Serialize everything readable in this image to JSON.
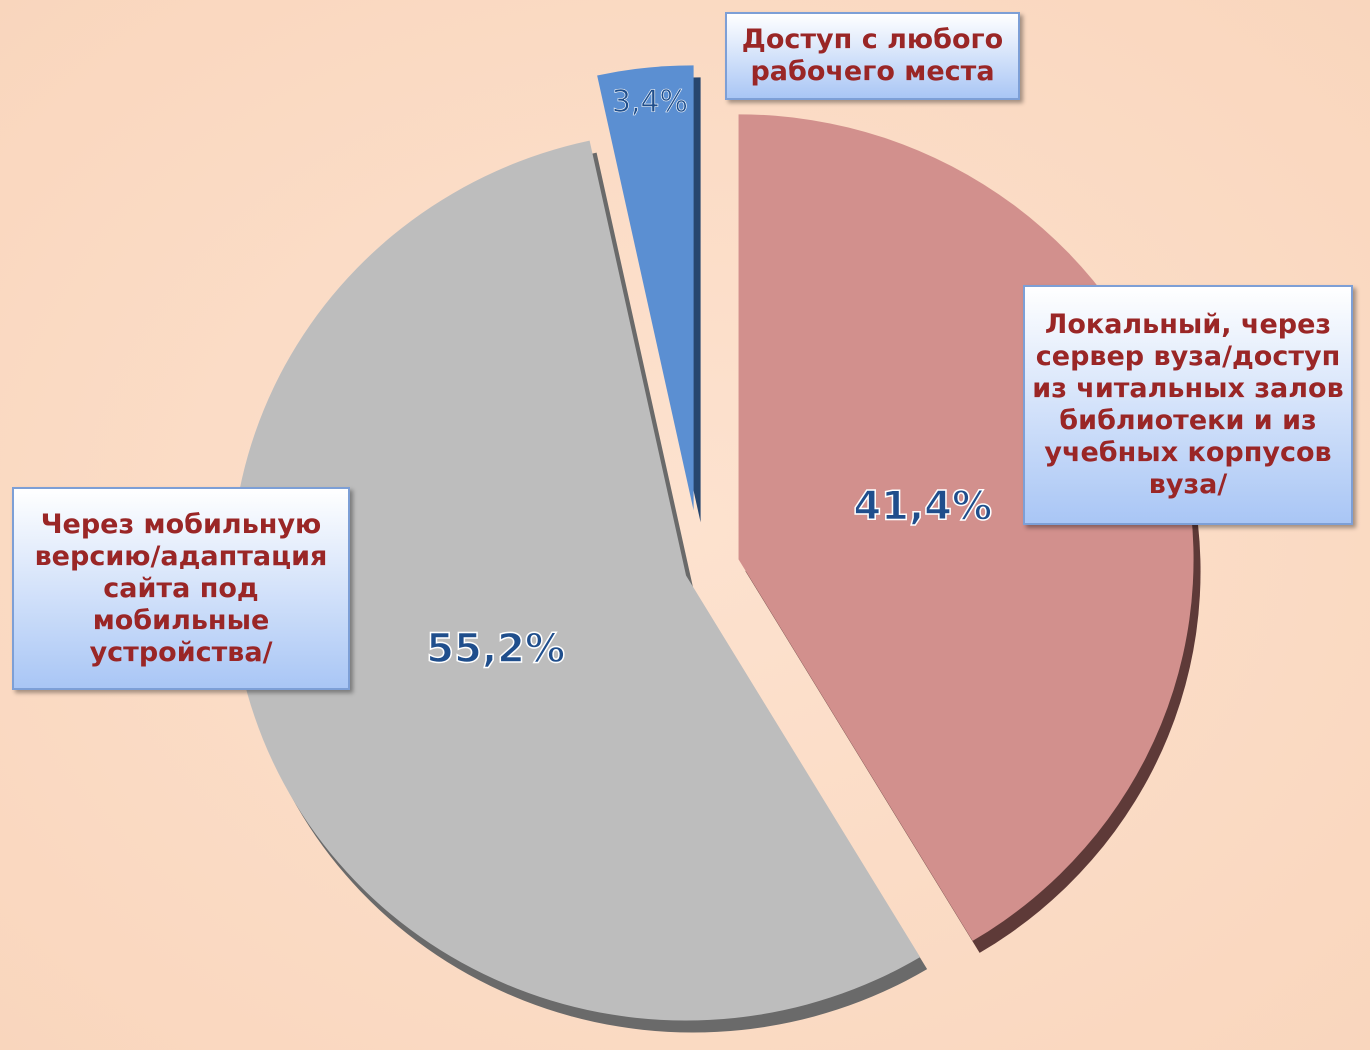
{
  "chart_data": {
    "type": "pie",
    "categories": [
      "Локальный, через сервер вуза/доступ из читальных залов библиотеки и из учебных корпусов вуза/",
      "Через мобильную версию/адаптация сайта под мобильные устройства/",
      "Доступ с любого рабочего места"
    ],
    "values": [
      41.4,
      55.2,
      3.4
    ],
    "value_labels": [
      "41,4%",
      "55,2%",
      "3,4%"
    ],
    "colors": [
      "#d2908d",
      "#bdbdbd",
      "#5b8fd2"
    ]
  }
}
